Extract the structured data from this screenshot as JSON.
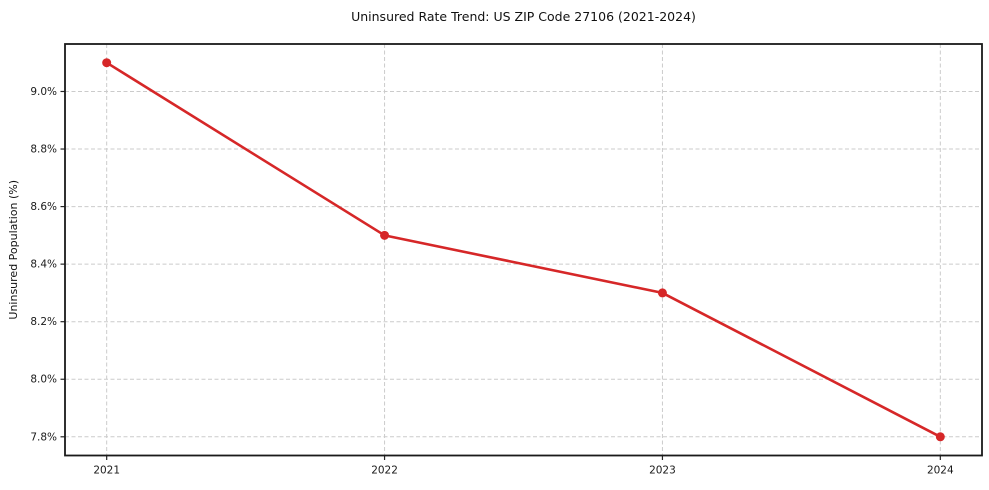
{
  "title": "Uninsured Rate Trend: US ZIP Code 27106 (2021-2024)",
  "chart_data": {
    "type": "line",
    "title": "Uninsured Rate Trend: US ZIP Code 27106 (2021-2024)",
    "xlabel": "",
    "ylabel": "Uninsured Population (%)",
    "x": [
      2021,
      2022,
      2023,
      2024
    ],
    "values": [
      9.1,
      8.5,
      8.3,
      7.8
    ],
    "xticks": [
      2021,
      2022,
      2023,
      2024
    ],
    "xtick_labels": [
      "2021",
      "2022",
      "2023",
      "2024"
    ],
    "yticks": [
      7.8,
      8.0,
      8.2,
      8.4,
      8.6,
      8.8,
      9.0
    ],
    "ytick_labels": [
      "7.8%",
      "8.0%",
      "8.2%",
      "8.4%",
      "8.6%",
      "8.8%",
      "9.0%"
    ],
    "xlim": [
      2020.85,
      2024.15
    ],
    "ylim": [
      7.735,
      9.165
    ],
    "grid": true,
    "grid_style": "dashed",
    "legend": "none",
    "line_color": "#d62728",
    "marker": "circle"
  }
}
